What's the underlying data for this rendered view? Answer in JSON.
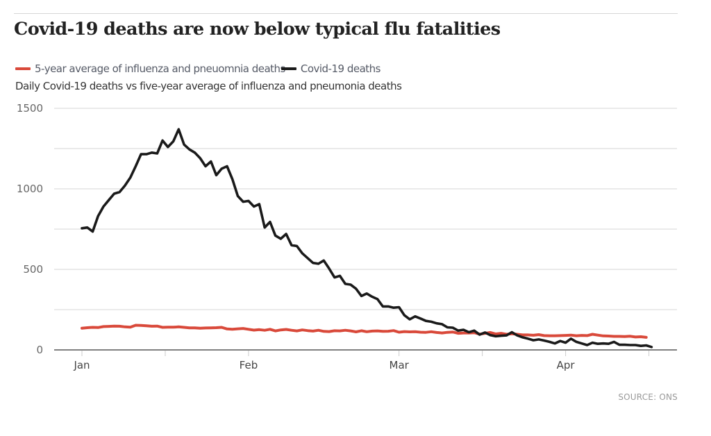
{
  "title": "Covid-19 deaths are now below typical flu fatalities",
  "legend": [
    {
      "label": "5-year average of influenza and pneuomnia deaths",
      "color": "#d9493a"
    },
    {
      "label": "Covid-19 deaths",
      "color": "#1a1a1a"
    }
  ],
  "subtitle": "Daily Covid-19 deaths vs five-year average of influenza and pneumonia deaths",
  "source": "SOURCE: ONS",
  "chart_data": {
    "type": "line",
    "title": "Covid-19 deaths are now below typical flu fatalities",
    "subtitle": "Daily Covid-19 deaths vs five-year average of influenza and pneumonia deaths",
    "xlabel": "",
    "ylabel": "",
    "x_unit": "day of year (0 = Jan 1)",
    "xlim": [
      -5,
      110
    ],
    "ylim": [
      0,
      1500
    ],
    "y_ticks": [
      0,
      500,
      1000,
      1500
    ],
    "y_gridlines": [
      0,
      250,
      500,
      750,
      1000,
      1250,
      1500
    ],
    "x_ticks": [
      {
        "day": 0,
        "label": "Jan"
      },
      {
        "day": 15.5,
        "label": ""
      },
      {
        "day": 31,
        "label": "Feb"
      },
      {
        "day": 59,
        "label": "Mar"
      },
      {
        "day": 74.5,
        "label": ""
      },
      {
        "day": 90,
        "label": "Apr"
      },
      {
        "day": 105.5,
        "label": ""
      }
    ],
    "grid": true,
    "legend_position": "top-left",
    "series": [
      {
        "name": "5-year average of influenza and pneuomnia deaths",
        "color": "#d9493a",
        "values": [
          135,
          138,
          140,
          139,
          145,
          146,
          148,
          147,
          143,
          141,
          153,
          152,
          150,
          147,
          148,
          140,
          141,
          141,
          143,
          140,
          137,
          137,
          135,
          136,
          137,
          138,
          140,
          130,
          128,
          131,
          133,
          128,
          123,
          126,
          122,
          128,
          118,
          124,
          127,
          122,
          118,
          124,
          120,
          117,
          122,
          115,
          114,
          119,
          118,
          122,
          118,
          112,
          119,
          113,
          117,
          118,
          115,
          116,
          120,
          110,
          114,
          112,
          113,
          110,
          109,
          113,
          108,
          105,
          109,
          111,
          103,
          105,
          105,
          107,
          98,
          103,
          108,
          99,
          103,
          97,
          100,
          97,
          93,
          93,
          91,
          95,
          89,
          88,
          88,
          89,
          90,
          92,
          88,
          90,
          89,
          97,
          92,
          87,
          86,
          84,
          84,
          83,
          85,
          80,
          82,
          78
        ]
      },
      {
        "name": "Covid-19 deaths",
        "color": "#1a1a1a",
        "values": [
          755,
          760,
          735,
          830,
          890,
          930,
          970,
          980,
          1020,
          1070,
          1140,
          1215,
          1215,
          1225,
          1220,
          1300,
          1260,
          1295,
          1370,
          1275,
          1245,
          1225,
          1190,
          1140,
          1170,
          1085,
          1125,
          1140,
          1060,
          955,
          920,
          925,
          890,
          905,
          760,
          795,
          710,
          690,
          720,
          650,
          645,
          600,
          570,
          540,
          535,
          555,
          505,
          450,
          460,
          410,
          405,
          380,
          335,
          350,
          330,
          315,
          270,
          270,
          262,
          265,
          215,
          190,
          208,
          195,
          180,
          175,
          165,
          160,
          140,
          138,
          120,
          125,
          110,
          120,
          95,
          108,
          92,
          85,
          88,
          90,
          110,
          90,
          78,
          70,
          60,
          65,
          58,
          50,
          40,
          55,
          45,
          70,
          50,
          40,
          30,
          45,
          38,
          40,
          38,
          50,
          32,
          32,
          30,
          30,
          25,
          28,
          18
        ]
      }
    ]
  }
}
